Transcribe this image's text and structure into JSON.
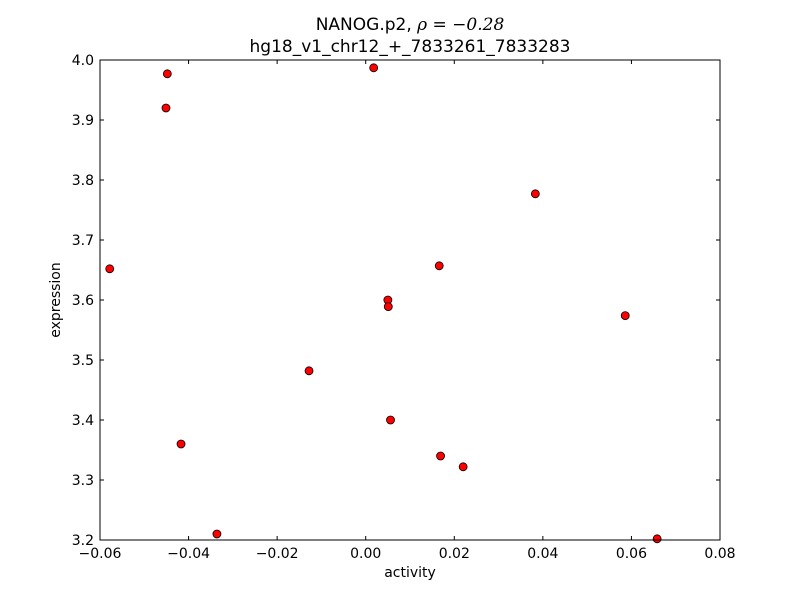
{
  "chart_data": {
    "type": "scatter",
    "title_gene": "NANOG.p2, ",
    "title_rho": "ρ = −0.28",
    "title_line2": "hg18_v1_chr12_+_7833261_7833283",
    "xlabel": "activity",
    "ylabel": "expression",
    "xlim": [
      -0.06,
      0.08
    ],
    "ylim": [
      3.2,
      4.0
    ],
    "xticks": [
      -0.06,
      -0.04,
      -0.02,
      0.0,
      0.02,
      0.04,
      0.06,
      0.08
    ],
    "xtick_labels": [
      "−0.06",
      "−0.04",
      "−0.02",
      "0.00",
      "0.02",
      "0.04",
      "0.06",
      "0.08"
    ],
    "yticks": [
      3.2,
      3.3,
      3.4,
      3.5,
      3.6,
      3.7,
      3.8,
      3.9,
      4.0
    ],
    "ytick_labels": [
      "3.2",
      "3.3",
      "3.4",
      "3.5",
      "3.6",
      "3.7",
      "3.8",
      "3.9",
      "4.0"
    ],
    "marker_color": "#ff0000",
    "marker_edge": "#000000",
    "grid": false,
    "points": [
      {
        "x": -0.0578,
        "y": 3.652
      },
      {
        "x": -0.0448,
        "y": 3.977
      },
      {
        "x": -0.0451,
        "y": 3.92
      },
      {
        "x": -0.0417,
        "y": 3.36
      },
      {
        "x": -0.0336,
        "y": 3.21
      },
      {
        "x": -0.0128,
        "y": 3.482
      },
      {
        "x": 0.0018,
        "y": 3.987
      },
      {
        "x": 0.005,
        "y": 3.6
      },
      {
        "x": 0.0051,
        "y": 3.589
      },
      {
        "x": 0.0056,
        "y": 3.4
      },
      {
        "x": 0.0166,
        "y": 3.657
      },
      {
        "x": 0.0169,
        "y": 3.34
      },
      {
        "x": 0.022,
        "y": 3.322
      },
      {
        "x": 0.0383,
        "y": 3.777
      },
      {
        "x": 0.0586,
        "y": 3.574
      },
      {
        "x": 0.0658,
        "y": 3.202
      }
    ]
  }
}
